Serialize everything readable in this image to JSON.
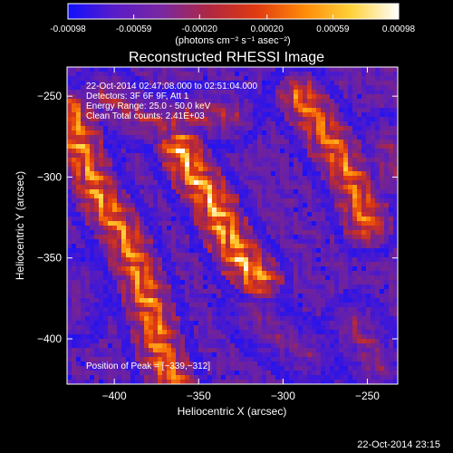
{
  "footer": {
    "timestamp": "22-Oct-2014 23:15"
  },
  "colorbar": {
    "tick_labels": [
      "-0.00098",
      "-0.00059",
      "-0.00020",
      "0.00020",
      "0.00059",
      "0.00098"
    ],
    "tick_values": [
      -0.00098,
      -0.00059,
      -0.0002,
      0.0002,
      0.00059,
      0.00098
    ],
    "range": [
      -0.00098,
      0.00098
    ],
    "unit_label": "(photons cm⁻² s⁻¹ asec⁻²)",
    "stops": [
      "#1010ff",
      "#5a1cc8",
      "#7a28a0",
      "#b02840",
      "#e03a10",
      "#ff8a08",
      "#ffd23a",
      "#ffffff"
    ]
  },
  "chart_data": {
    "type": "heatmap",
    "title": "Reconstructed RHESSI Image",
    "xlabel": "Heliocentric X (arcsec)",
    "ylabel": "Heliocentric Y (arcsec)",
    "xlim": [
      -428,
      -232
    ],
    "ylim": [
      -428,
      -232
    ],
    "x_ticks": [
      -400,
      -350,
      -300,
      -250
    ],
    "y_ticks": [
      -400,
      -350,
      -300,
      -250
    ],
    "x_tick_labels": [
      "−400",
      "−350",
      "−300",
      "−250"
    ],
    "y_tick_labels": [
      "−400",
      "−350",
      "−300",
      "−250"
    ],
    "annotations": [
      "22-Oct-2014 02:47:08.000 to 02:51:04.000",
      "Detectors: 3F 6F 9F, Att 1",
      "Energy Range: 25.0 - 50.0 keV",
      "Clean    Total counts: 2.41E+03"
    ],
    "peak_label": "Position of Peak = [−339,−312]",
    "peak": [
      -339,
      -312
    ],
    "sources": [
      {
        "path": [
          [
            -425,
            -260
          ],
          [
            -420,
            -285
          ],
          [
            -410,
            -310
          ],
          [
            -395,
            -335
          ],
          [
            -385,
            -360
          ],
          [
            -378,
            -385
          ],
          [
            -372,
            -410
          ],
          [
            -365,
            -428
          ]
        ],
        "strength": 0.9
      },
      {
        "path": [
          [
            -362,
            -280
          ],
          [
            -352,
            -300
          ],
          [
            -342,
            -315
          ],
          [
            -335,
            -332
          ],
          [
            -325,
            -350
          ],
          [
            -315,
            -362
          ]
        ],
        "strength": 1.0
      },
      {
        "path": [
          [
            -290,
            -250
          ],
          [
            -278,
            -268
          ],
          [
            -268,
            -285
          ],
          [
            -258,
            -305
          ],
          [
            -250,
            -330
          ]
        ],
        "strength": 0.85
      },
      {
        "path": [
          [
            -405,
            -250
          ],
          [
            -388,
            -262
          ],
          [
            -370,
            -268
          ],
          [
            -352,
            -262
          ],
          [
            -332,
            -262
          ]
        ],
        "strength": 0.55
      },
      {
        "path": [
          [
            -318,
            -385
          ],
          [
            -300,
            -400
          ],
          [
            -285,
            -410
          ]
        ],
        "strength": 0.4
      },
      {
        "path": [
          [
            -258,
            -392
          ],
          [
            -250,
            -405
          ],
          [
            -244,
            -418
          ]
        ],
        "strength": 0.45
      },
      {
        "path": [
          [
            -238,
            -278
          ],
          [
            -236,
            -300
          ]
        ],
        "strength": 0.45
      },
      {
        "path": [
          [
            -420,
            -365
          ],
          [
            -425,
            -385
          ]
        ],
        "strength": 0.35
      }
    ]
  }
}
